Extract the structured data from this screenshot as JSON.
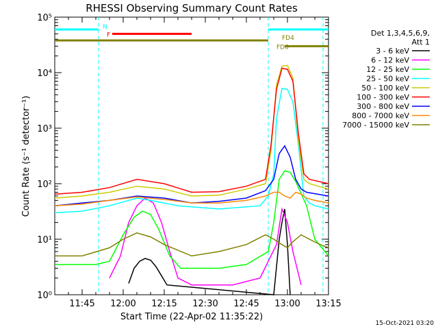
{
  "chart_data": {
    "type": "line",
    "title": "RHESSI Observing Summary Count Rates",
    "xlabel": "Start Time (22-Apr-02 11:35:22)",
    "ylabel": "Count Rate (s⁻¹ detector⁻¹)",
    "y_scale": "log",
    "ylim": [
      1,
      100000
    ],
    "xlim": [
      "11:35",
      "13:15"
    ],
    "x_ticks": [
      "11:45",
      "12:00",
      "12:15",
      "12:30",
      "12:45",
      "13:00",
      "13:15"
    ],
    "y_ticks": [
      {
        "value": 1,
        "label": "10⁰"
      },
      {
        "value": 10,
        "label": "10¹"
      },
      {
        "value": 100,
        "label": "10²"
      },
      {
        "value": 1000,
        "label": "10³"
      },
      {
        "value": 10000,
        "label": "10⁴"
      },
      {
        "value": 100000,
        "label": "10⁵"
      }
    ],
    "legend": {
      "placement": "right",
      "header": [
        "Det 1,3,4,5,6,9,",
        "Att 1"
      ]
    },
    "series": [
      {
        "name": "3 - 6 keV",
        "color": "#000000",
        "x": [
          "12:02",
          "12:04",
          "12:06",
          "12:08",
          "12:10",
          "12:12",
          "12:14",
          "12:16",
          "12:55",
          "12:57",
          "12:58",
          "12:59",
          "13:00",
          "13:01"
        ],
        "y": [
          1.6,
          3,
          4,
          4.5,
          4.2,
          3.2,
          2.2,
          1.5,
          1,
          10,
          20,
          35,
          8,
          1
        ]
      },
      {
        "name": "6 - 12 keV",
        "color": "#ff00ff",
        "x": [
          "11:55",
          "11:59",
          "12:02",
          "12:05",
          "12:08",
          "12:11",
          "12:14",
          "12:17",
          "12:20",
          "12:25",
          "12:40",
          "12:50",
          "12:56",
          "12:58",
          "13:00",
          "13:02",
          "13:05"
        ],
        "y": [
          2,
          5,
          20,
          40,
          55,
          45,
          20,
          6,
          2,
          1.5,
          1.5,
          2,
          8,
          35,
          20,
          6,
          1.5
        ]
      },
      {
        "name": "12 - 25 keV",
        "color": "#00ff00",
        "x": [
          "11:35",
          "11:50",
          "11:55",
          "12:00",
          "12:04",
          "12:07",
          "12:10",
          "12:13",
          "12:17",
          "12:21",
          "12:25",
          "12:35",
          "12:45",
          "12:53",
          "12:55",
          "12:57",
          "12:59",
          "13:01",
          "13:03",
          "13:07",
          "13:10",
          "13:15"
        ],
        "y": [
          3.5,
          3.5,
          4,
          12,
          25,
          32,
          28,
          15,
          5,
          3,
          3,
          3,
          3.5,
          6,
          20,
          120,
          170,
          160,
          110,
          40,
          10,
          5
        ]
      },
      {
        "name": "25 - 50 keV",
        "color": "#00ffff",
        "x": [
          "11:35",
          "11:45",
          "11:55",
          "12:05",
          "12:10",
          "12:20",
          "12:35",
          "12:50",
          "12:53",
          "12:55",
          "12:56",
          "12:58",
          "13:00",
          "13:02",
          "13:04",
          "13:06",
          "13:08",
          "13:10",
          "13:15"
        ],
        "y": [
          30,
          32,
          40,
          55,
          50,
          40,
          35,
          40,
          60,
          150,
          1500,
          5200,
          5000,
          3000,
          500,
          60,
          45,
          40,
          35
        ]
      },
      {
        "name": "50 - 100 keV",
        "color": "#cccc00",
        "x": [
          "11:35",
          "11:45",
          "11:55",
          "12:05",
          "12:15",
          "12:25",
          "12:35",
          "12:45",
          "12:52",
          "12:54",
          "12:56",
          "12:58",
          "13:00",
          "13:02",
          "13:04",
          "13:06",
          "13:08",
          "13:15"
        ],
        "y": [
          55,
          60,
          70,
          90,
          80,
          60,
          62,
          80,
          100,
          400,
          6000,
          13000,
          13500,
          8000,
          600,
          120,
          100,
          80
        ]
      },
      {
        "name": "100 - 300 keV",
        "color": "#ff0000",
        "x": [
          "11:35",
          "11:45",
          "11:55",
          "12:05",
          "12:15",
          "12:25",
          "12:35",
          "12:45",
          "12:52",
          "12:54",
          "12:56",
          "12:58",
          "13:00",
          "13:02",
          "13:04",
          "13:06",
          "13:08",
          "13:15"
        ],
        "y": [
          65,
          70,
          85,
          120,
          100,
          70,
          72,
          90,
          120,
          500,
          5000,
          12000,
          11500,
          7000,
          800,
          150,
          120,
          100
        ]
      },
      {
        "name": "300 - 800 keV",
        "color": "#0000ff",
        "x": [
          "11:35",
          "11:45",
          "11:55",
          "12:05",
          "12:15",
          "12:25",
          "12:35",
          "12:45",
          "12:52",
          "12:55",
          "12:57",
          "12:59",
          "13:01",
          "13:03",
          "13:05",
          "13:07",
          "13:15"
        ],
        "y": [
          40,
          45,
          50,
          60,
          55,
          45,
          48,
          55,
          75,
          120,
          350,
          480,
          300,
          120,
          80,
          70,
          60
        ]
      },
      {
        "name": "800 - 7000 keV",
        "color": "#ff8800",
        "x": [
          "11:35",
          "11:45",
          "11:55",
          "12:05",
          "12:15",
          "12:25",
          "12:35",
          "12:45",
          "12:52",
          "12:55",
          "12:57",
          "12:59",
          "13:01",
          "13:03",
          "13:05",
          "13:07",
          "13:10",
          "13:15"
        ],
        "y": [
          40,
          43,
          50,
          58,
          52,
          45,
          45,
          50,
          60,
          70,
          70,
          60,
          55,
          70,
          65,
          55,
          50,
          45
        ]
      },
      {
        "name": "7000 - 15000 keV",
        "color": "#808000",
        "x": [
          "11:35",
          "11:45",
          "11:55",
          "12:00",
          "12:05",
          "12:10",
          "12:15",
          "12:25",
          "12:35",
          "12:45",
          "12:52",
          "12:55",
          "12:58",
          "13:00",
          "13:02",
          "13:05",
          "13:08",
          "13:12",
          "13:15"
        ],
        "y": [
          5,
          5,
          7,
          10,
          13,
          11,
          8,
          5,
          6,
          8,
          12,
          10,
          8,
          7,
          9,
          12,
          10,
          8,
          7
        ]
      }
    ],
    "flag_bars": [
      {
        "label": "N",
        "color": "#00ffff",
        "segments": [
          [
            "11:35",
            "11:51"
          ],
          [
            "12:53",
            "13:15"
          ]
        ],
        "level": 60000
      },
      {
        "label": "F",
        "color": "#ff0000",
        "segments": [
          [
            "11:56",
            "12:25"
          ]
        ],
        "level": 50000
      },
      {
        "label": "FD4",
        "color": "#808000",
        "segments": [
          [
            "11:35",
            "12:53"
          ]
        ],
        "level": 38000
      },
      {
        "label": "FD6",
        "color": "#808000",
        "segments": [
          [
            "12:59",
            "13:15"
          ]
        ],
        "level": 30000
      }
    ],
    "vertical_markers": [
      {
        "x": "11:51",
        "color": "#00ffff"
      },
      {
        "x": "12:53",
        "color": "#00ffff"
      },
      {
        "x": "13:13",
        "color": "#00ffff"
      }
    ],
    "grid": false
  },
  "footer": {
    "timestamp": "15-Oct-2021 03:20"
  }
}
